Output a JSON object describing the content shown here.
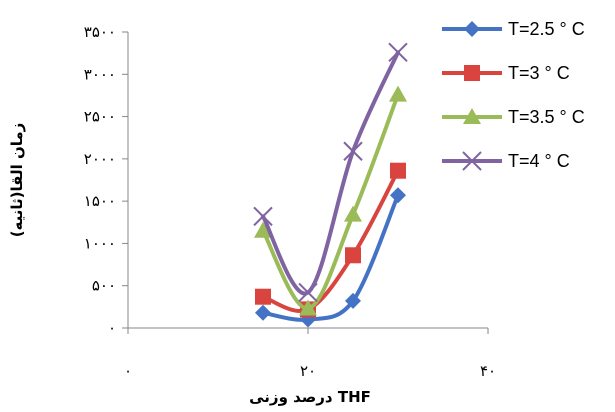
{
  "chart_data": {
    "type": "line",
    "xlabel": "درصد وزنی THF",
    "ylabel": "زمان القا(ثانیه)",
    "xlim": [
      0,
      40
    ],
    "ylim": [
      0,
      3500
    ],
    "x_ticks": [
      0,
      20,
      40
    ],
    "x_tick_labels": [
      "۰",
      "۲۰",
      "۴۰"
    ],
    "y_ticks": [
      0,
      500,
      1000,
      1500,
      2000,
      2500,
      3000,
      3500
    ],
    "y_tick_labels": [
      "۰",
      "۵۰۰",
      "۱۰۰۰",
      "۱۵۰۰",
      "۲۰۰۰",
      "۲۵۰۰",
      "۳۰۰۰",
      "۳۵۰۰"
    ],
    "x": [
      15,
      20,
      25,
      30
    ],
    "grid": false,
    "legend_position": "top-right",
    "series": [
      {
        "name": "T=2.5 ° C",
        "color": "#4472C4",
        "marker": "diamond",
        "values": [
          180,
          100,
          320,
          1570
        ]
      },
      {
        "name": "T=3 ° C",
        "color": "#D9443F",
        "marker": "square",
        "values": [
          370,
          220,
          860,
          1860
        ]
      },
      {
        "name": "T=3.5 ° C",
        "color": "#9BBB59",
        "marker": "triangle",
        "values": [
          1150,
          230,
          1340,
          2760
        ]
      },
      {
        "name": "T=4 ° C",
        "color": "#8064A2",
        "marker": "x",
        "values": [
          1320,
          420,
          2090,
          3260
        ]
      }
    ]
  }
}
